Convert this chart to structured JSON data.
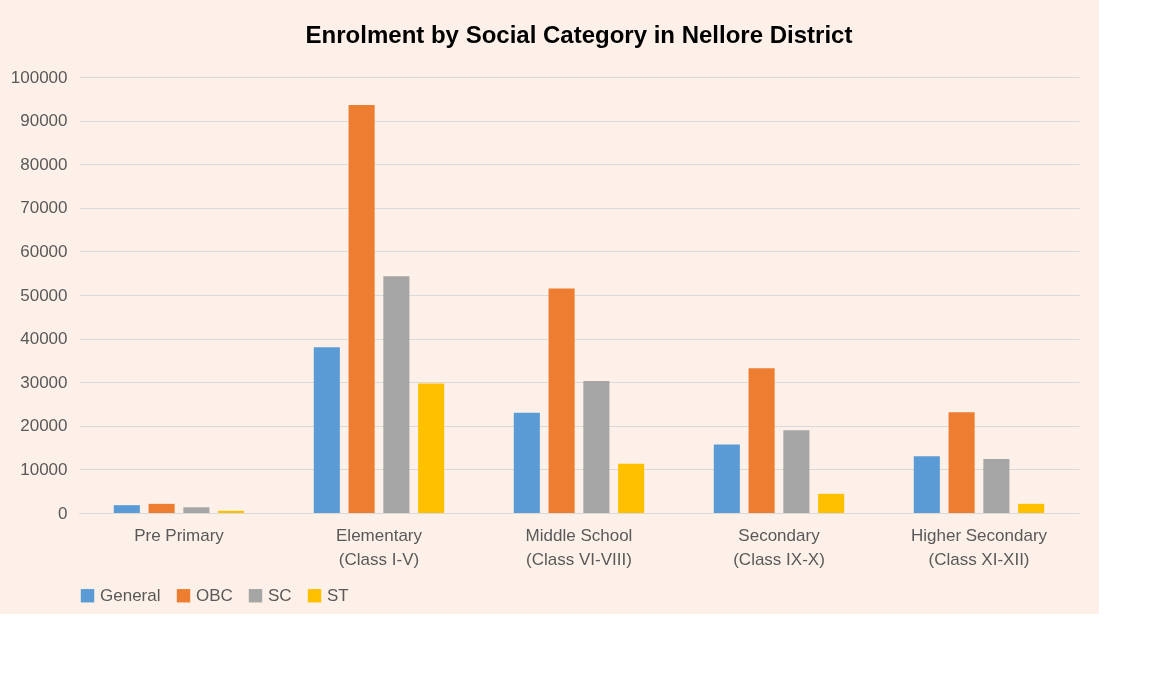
{
  "chart_data": {
    "type": "bar",
    "title": "Enrolment by Social Category in Nellore District",
    "categories": [
      "Pre Primary",
      "Elementary\n(Class I-V)",
      "Middle School\n(Class VI-VIII)",
      "Secondary\n(Class IX-X)",
      "Higher Secondary\n(Class XI-XII)"
    ],
    "series": [
      {
        "name": "General",
        "color": "#5b9bd5",
        "values": [
          1800,
          38000,
          23000,
          15700,
          13000
        ]
      },
      {
        "name": "OBC",
        "color": "#ed7d31",
        "values": [
          2100,
          93600,
          51500,
          33200,
          23100
        ]
      },
      {
        "name": "SC",
        "color": "#a5a5a5",
        "values": [
          1300,
          54300,
          30300,
          19000,
          12400
        ]
      },
      {
        "name": "ST",
        "color": "#ffc000",
        "values": [
          500,
          29700,
          11300,
          4400,
          2100
        ]
      }
    ],
    "ylim": [
      0,
      100000
    ],
    "yticks": [
      0,
      10000,
      20000,
      30000,
      40000,
      50000,
      60000,
      70000,
      80000,
      90000,
      100000
    ],
    "grid": "y",
    "legend": "bottom"
  }
}
